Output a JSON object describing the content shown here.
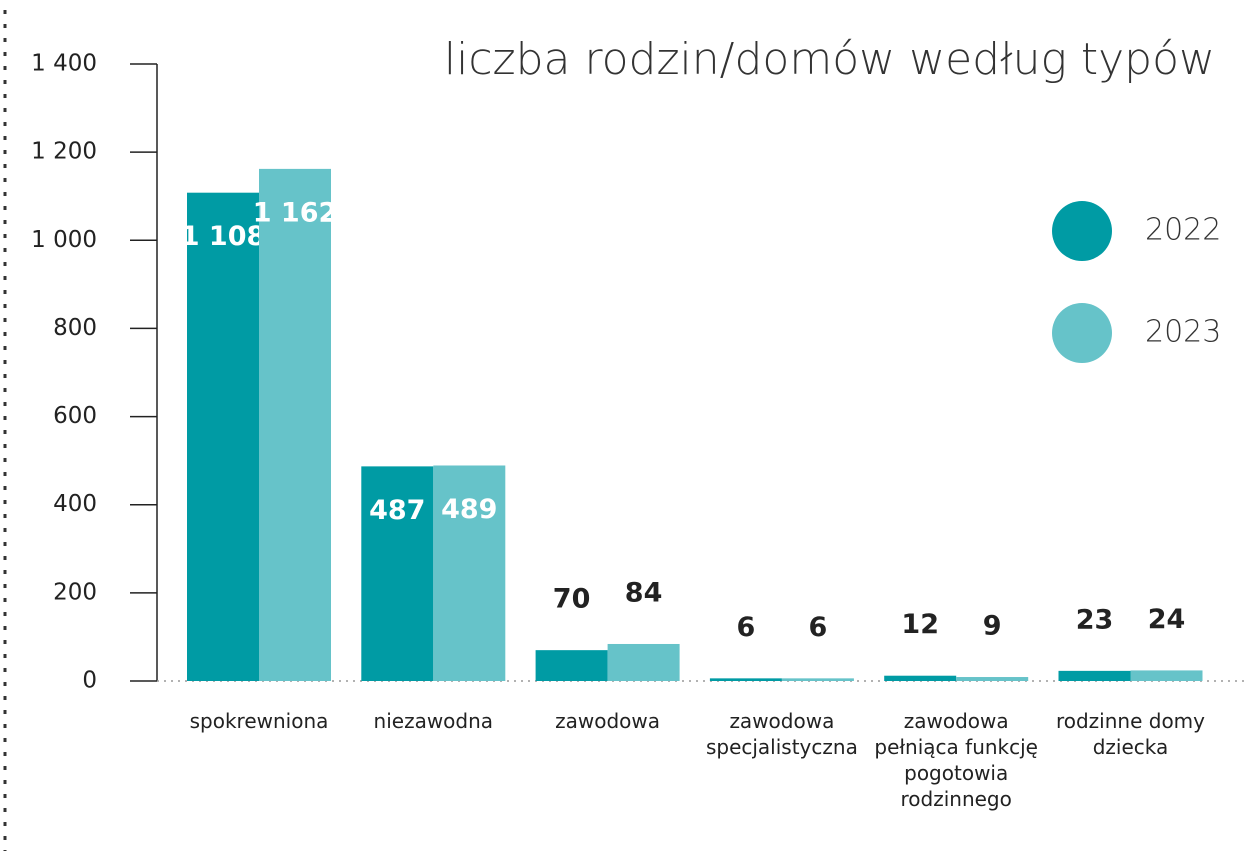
{
  "chart_data": {
    "type": "bar",
    "title": "liczba rodzin/domów według typów",
    "categories": [
      "spokrewniona",
      "niezawodna",
      "zawodowa",
      "zawodowa specjalistyczna",
      "zawodowa pełniąca funkcję pogotowia rodzinnego",
      "rodzinne domy dziecka"
    ],
    "series": [
      {
        "name": "2022",
        "color": "#009ba4",
        "values": [
          1108,
          487,
          70,
          6,
          12,
          23
        ],
        "value_labels": [
          "1 108",
          "487",
          "70",
          "6",
          "12",
          "23"
        ]
      },
      {
        "name": "2023",
        "color": "#66c3c9",
        "values": [
          1162,
          489,
          84,
          6,
          9,
          24
        ],
        "value_labels": [
          "1 162",
          "489",
          "84",
          "6",
          "9",
          "24"
        ]
      }
    ],
    "ylim": [
      0,
      1400
    ],
    "yticks": [
      0,
      200,
      400,
      600,
      800,
      {
        "value": 1000,
        "label": "1 000"
      },
      {
        "value": 1200,
        "label": "1 200"
      },
      {
        "value": 1400,
        "label": "1 400"
      }
    ]
  }
}
